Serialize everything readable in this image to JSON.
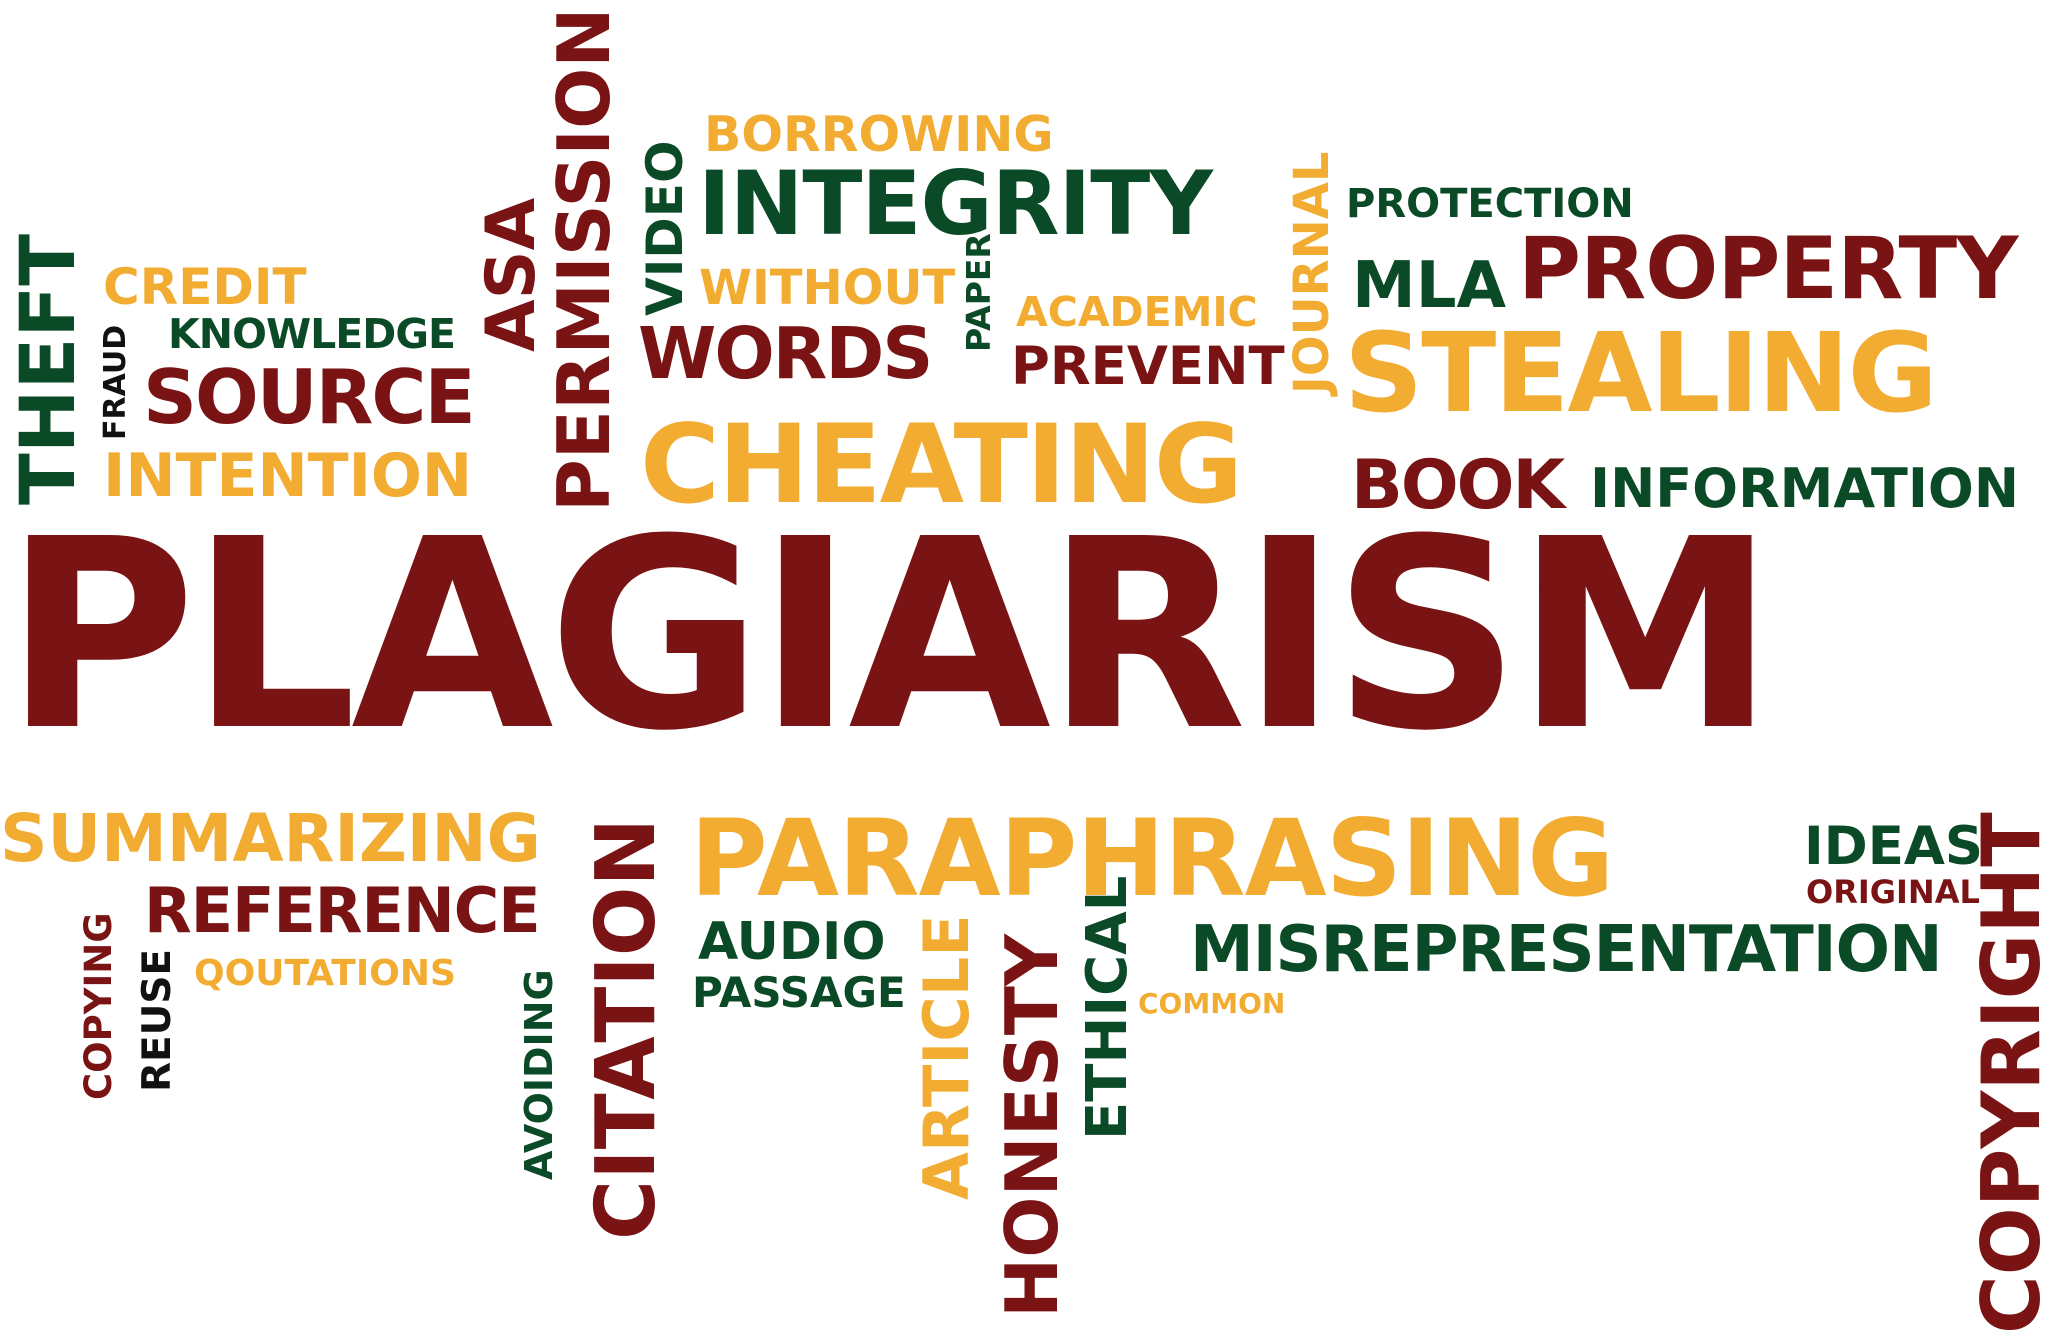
{
  "palette": {
    "maroon": "#7a1313",
    "gold": "#f2ac32",
    "green": "#0b4a26",
    "black": "#111111"
  },
  "words": {
    "plagiarism": "PLAGIARISM",
    "theft": "THEFT",
    "credit": "CREDIT",
    "knowledge": "KNOWLEDGE",
    "fraud": "FRAUD",
    "source": "SOURCE",
    "intention": "INTENTION",
    "asa": "ASA",
    "permission": "PERMISSION",
    "video": "VIDEO",
    "borrowing": "BORROWING",
    "integrity": "INTEGRITY",
    "without": "WITHOUT",
    "words": "WORDS",
    "paper": "PAPER",
    "academic": "ACADEMIC",
    "prevent": "PREVENT",
    "journal": "JOURNAL",
    "cheating": "CHEATING",
    "protection": "PROTECTION",
    "mla": "MLA",
    "property": "PROPERTY",
    "stealing": "STEALING",
    "book": "BOOK",
    "information": "INFORMATION",
    "summarizing": "SUMMARIZING",
    "reference": "REFERENCE",
    "quotations": "QOUTATIONS",
    "copying": "COPYING",
    "reuse": "REUSE",
    "avoiding": "AVOIDING",
    "citation": "CITATION",
    "paraphrasing": "PARAPHRASING",
    "audio": "AUDIO",
    "passage": "PASSAGE",
    "article": "ARTICLE",
    "honesty": "HONESTY",
    "ethical": "ETHICAL",
    "common": "COMMON",
    "misrepresentation": "MISREPRESENTATION",
    "ideas": "IDEAS",
    "original": "ORIGINAL",
    "copyright": "COPYRIGHT"
  }
}
